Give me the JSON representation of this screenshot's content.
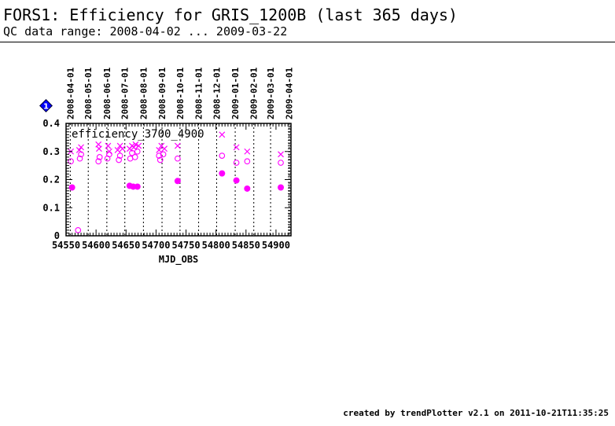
{
  "header": {
    "title": "FORS1: Efficiency for GRIS_1200B (last 365 days)",
    "subtitle": "QC data range: 2008-04-02 ... 2009-03-22"
  },
  "footer": {
    "credit": "created by trendPlotter v2.1 on 2011-10-21T11:35:25"
  },
  "badge": {
    "label": "1",
    "color": "#0000ff"
  },
  "chart_data": {
    "type": "scatter",
    "title": "",
    "panel_label": "efficiency_3700_4900",
    "xlabel": "MJD_OBS",
    "ylabel": "",
    "xlim": [
      54550,
      54925
    ],
    "ylim": [
      0,
      0.4
    ],
    "x_ticks": [
      54550,
      54600,
      54650,
      54700,
      54750,
      54800,
      54850,
      54900
    ],
    "y_ticks": [
      0,
      0.1,
      0.2,
      0.3,
      0.4
    ],
    "y_tick_labels": [
      "0",
      "0.1",
      "0.2",
      "0.3",
      "0.4"
    ],
    "date_markers": [
      {
        "label": "2008-04-01",
        "mjd": 54557
      },
      {
        "label": "2008-05-01",
        "mjd": 54587
      },
      {
        "label": "2008-06-01",
        "mjd": 54618
      },
      {
        "label": "2008-07-01",
        "mjd": 54648
      },
      {
        "label": "2008-08-01",
        "mjd": 54679
      },
      {
        "label": "2008-09-01",
        "mjd": 54710
      },
      {
        "label": "2008-10-01",
        "mjd": 54740
      },
      {
        "label": "2008-11-01",
        "mjd": 54771
      },
      {
        "label": "2008-12-01",
        "mjd": 54801
      },
      {
        "label": "2009-01-01",
        "mjd": 54832
      },
      {
        "label": "2009-02-01",
        "mjd": 54863
      },
      {
        "label": "2009-03-01",
        "mjd": 54891
      },
      {
        "label": "2009-04-01",
        "mjd": 54922
      }
    ],
    "color": "#ff00ff",
    "grid": "vertical dotted at month starts",
    "series": [
      {
        "marker": "cross",
        "points": [
          [
            54558,
            0.3
          ],
          [
            54572,
            0.305
          ],
          [
            54575,
            0.315
          ],
          [
            54605,
            0.31
          ],
          [
            54604,
            0.325
          ],
          [
            54620,
            0.32
          ],
          [
            54622,
            0.3
          ],
          [
            54636,
            0.305
          ],
          [
            54640,
            0.32
          ],
          [
            54644,
            0.31
          ],
          [
            54656,
            0.31
          ],
          [
            54660,
            0.32
          ],
          [
            54663,
            0.315
          ],
          [
            54666,
            0.325
          ],
          [
            54671,
            0.32
          ],
          [
            54705,
            0.305
          ],
          [
            54709,
            0.32
          ],
          [
            54714,
            0.31
          ],
          [
            54736,
            0.32
          ],
          [
            54810,
            0.36
          ],
          [
            54834,
            0.315
          ],
          [
            54852,
            0.3
          ],
          [
            54908,
            0.29
          ]
        ]
      },
      {
        "marker": "open-circle",
        "points": [
          [
            54558,
            0.265
          ],
          [
            54570,
            0.02
          ],
          [
            54573,
            0.275
          ],
          [
            54575,
            0.29
          ],
          [
            54604,
            0.265
          ],
          [
            54606,
            0.28
          ],
          [
            54619,
            0.275
          ],
          [
            54622,
            0.29
          ],
          [
            54638,
            0.27
          ],
          [
            54640,
            0.285
          ],
          [
            54657,
            0.275
          ],
          [
            54660,
            0.295
          ],
          [
            54665,
            0.28
          ],
          [
            54669,
            0.3
          ],
          [
            54705,
            0.285
          ],
          [
            54707,
            0.27
          ],
          [
            54712,
            0.29
          ],
          [
            54736,
            0.275
          ],
          [
            54810,
            0.285
          ],
          [
            54834,
            0.26
          ],
          [
            54852,
            0.265
          ],
          [
            54908,
            0.26
          ]
        ]
      },
      {
        "marker": "filled-circle",
        "points": [
          [
            54560,
            0.172
          ],
          [
            54656,
            0.178
          ],
          [
            54662,
            0.175
          ],
          [
            54669,
            0.175
          ],
          [
            54736,
            0.195
          ],
          [
            54810,
            0.222
          ],
          [
            54834,
            0.197
          ],
          [
            54852,
            0.168
          ],
          [
            54908,
            0.172
          ]
        ]
      }
    ]
  }
}
